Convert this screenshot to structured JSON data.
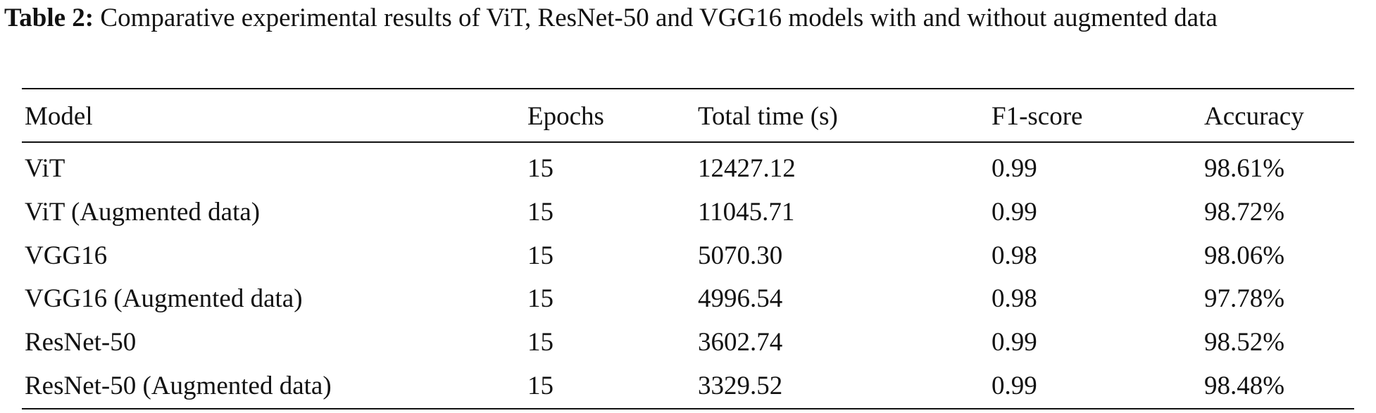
{
  "caption": {
    "label": "Table 2:",
    "text": "Comparative experimental results of ViT, ResNet-50 and VGG16 models with and without augmented data"
  },
  "table": {
    "header": [
      "Model",
      "Epochs",
      "Total time (s)",
      "F1-score",
      "Accuracy"
    ],
    "rows": [
      [
        "ViT",
        "15",
        "12427.12",
        "0.99",
        "98.61%"
      ],
      [
        "ViT (Augmented data)",
        "15",
        "11045.71",
        "0.99",
        "98.72%"
      ],
      [
        "VGG16",
        "15",
        "5070.30",
        "0.98",
        "98.06%"
      ],
      [
        "VGG16 (Augmented data)",
        "15",
        "4996.54",
        "0.98",
        "97.78%"
      ],
      [
        "ResNet-50",
        "15",
        "3602.74",
        "0.99",
        "98.52%"
      ],
      [
        "ResNet-50 (Augmented data)",
        "15",
        "3329.52",
        "0.99",
        "98.48%"
      ]
    ]
  }
}
